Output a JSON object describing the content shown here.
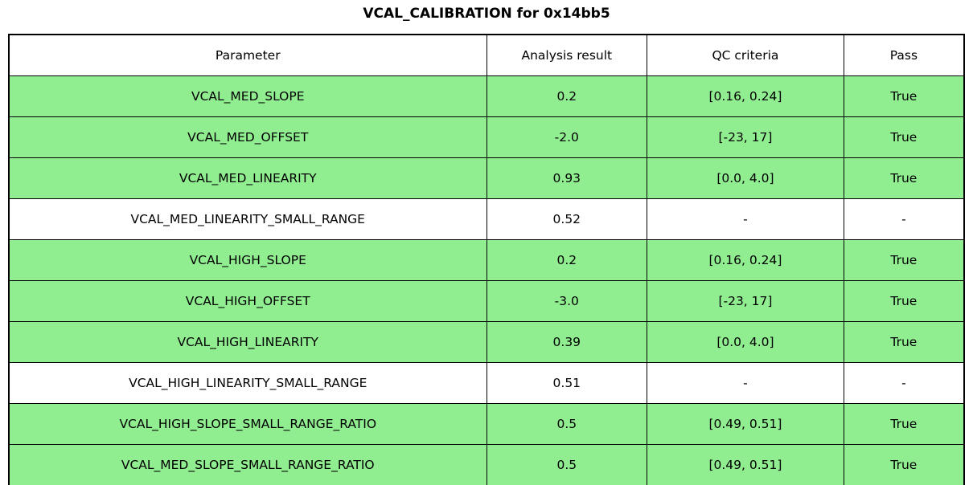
{
  "title": "VCAL_CALIBRATION for 0x14bb5",
  "colors": {
    "pass_row_background": "#90EE90",
    "neutral_row_background": "#ffffff",
    "border": "#000000",
    "text": "#000000"
  },
  "chart_data": {
    "type": "table",
    "title": "VCAL_CALIBRATION for 0x14bb5",
    "columns": [
      "Parameter",
      "Analysis result",
      "QC criteria",
      "Pass"
    ],
    "rows": [
      {
        "parameter": "VCAL_MED_SLOPE",
        "result": "0.2",
        "criteria": "[0.16, 0.24]",
        "pass": "True",
        "highlighted": true
      },
      {
        "parameter": "VCAL_MED_OFFSET",
        "result": "-2.0",
        "criteria": "[-23, 17]",
        "pass": "True",
        "highlighted": true
      },
      {
        "parameter": "VCAL_MED_LINEARITY",
        "result": "0.93",
        "criteria": "[0.0, 4.0]",
        "pass": "True",
        "highlighted": true
      },
      {
        "parameter": "VCAL_MED_LINEARITY_SMALL_RANGE",
        "result": "0.52",
        "criteria": "-",
        "pass": "-",
        "highlighted": false
      },
      {
        "parameter": "VCAL_HIGH_SLOPE",
        "result": "0.2",
        "criteria": "[0.16, 0.24]",
        "pass": "True",
        "highlighted": true
      },
      {
        "parameter": "VCAL_HIGH_OFFSET",
        "result": "-3.0",
        "criteria": "[-23, 17]",
        "pass": "True",
        "highlighted": true
      },
      {
        "parameter": "VCAL_HIGH_LINEARITY",
        "result": "0.39",
        "criteria": "[0.0, 4.0]",
        "pass": "True",
        "highlighted": true
      },
      {
        "parameter": "VCAL_HIGH_LINEARITY_SMALL_RANGE",
        "result": "0.51",
        "criteria": "-",
        "pass": "-",
        "highlighted": false
      },
      {
        "parameter": "VCAL_HIGH_SLOPE_SMALL_RANGE_RATIO",
        "result": "0.5",
        "criteria": "[0.49, 0.51]",
        "pass": "True",
        "highlighted": true
      },
      {
        "parameter": "VCAL_MED_SLOPE_SMALL_RANGE_RATIO",
        "result": "0.5",
        "criteria": "[0.49, 0.51]",
        "pass": "True",
        "highlighted": true
      }
    ]
  }
}
